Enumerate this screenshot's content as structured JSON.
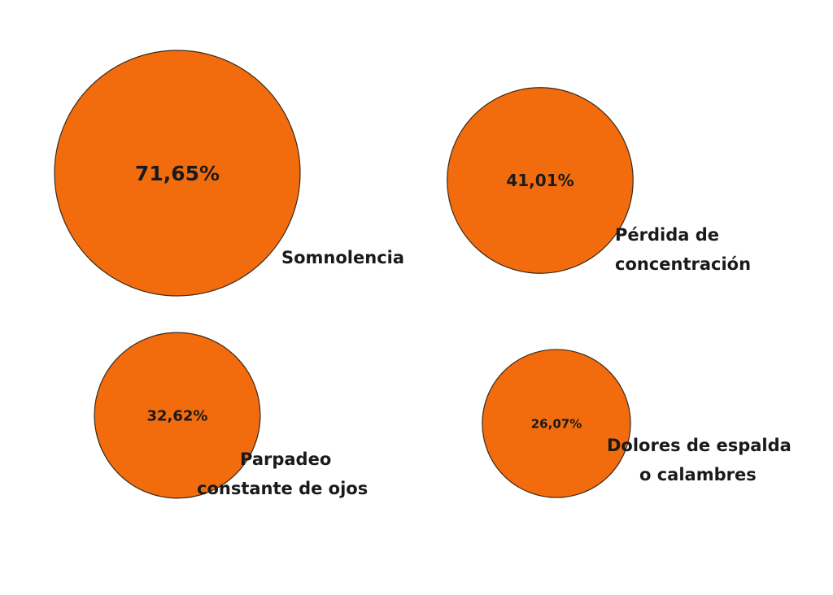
{
  "chart_data": {
    "type": "bubble",
    "bubble_color": "#f26c0d",
    "outline_color": "#3a2a1a",
    "items": [
      {
        "label": [
          "Somnolencia"
        ],
        "value": 71.65,
        "value_label": "71,65%"
      },
      {
        "label": [
          "Pérdida de",
          "concentración"
        ],
        "value": 41.01,
        "value_label": "41,01%"
      },
      {
        "label": [
          "Parpadeo",
          "constante de ojos"
        ],
        "value": 32.62,
        "value_label": "32,62%"
      },
      {
        "label": [
          "Dolores de espalda",
          "o calambres"
        ],
        "value": 26.07,
        "value_label": "26,07%"
      }
    ]
  }
}
